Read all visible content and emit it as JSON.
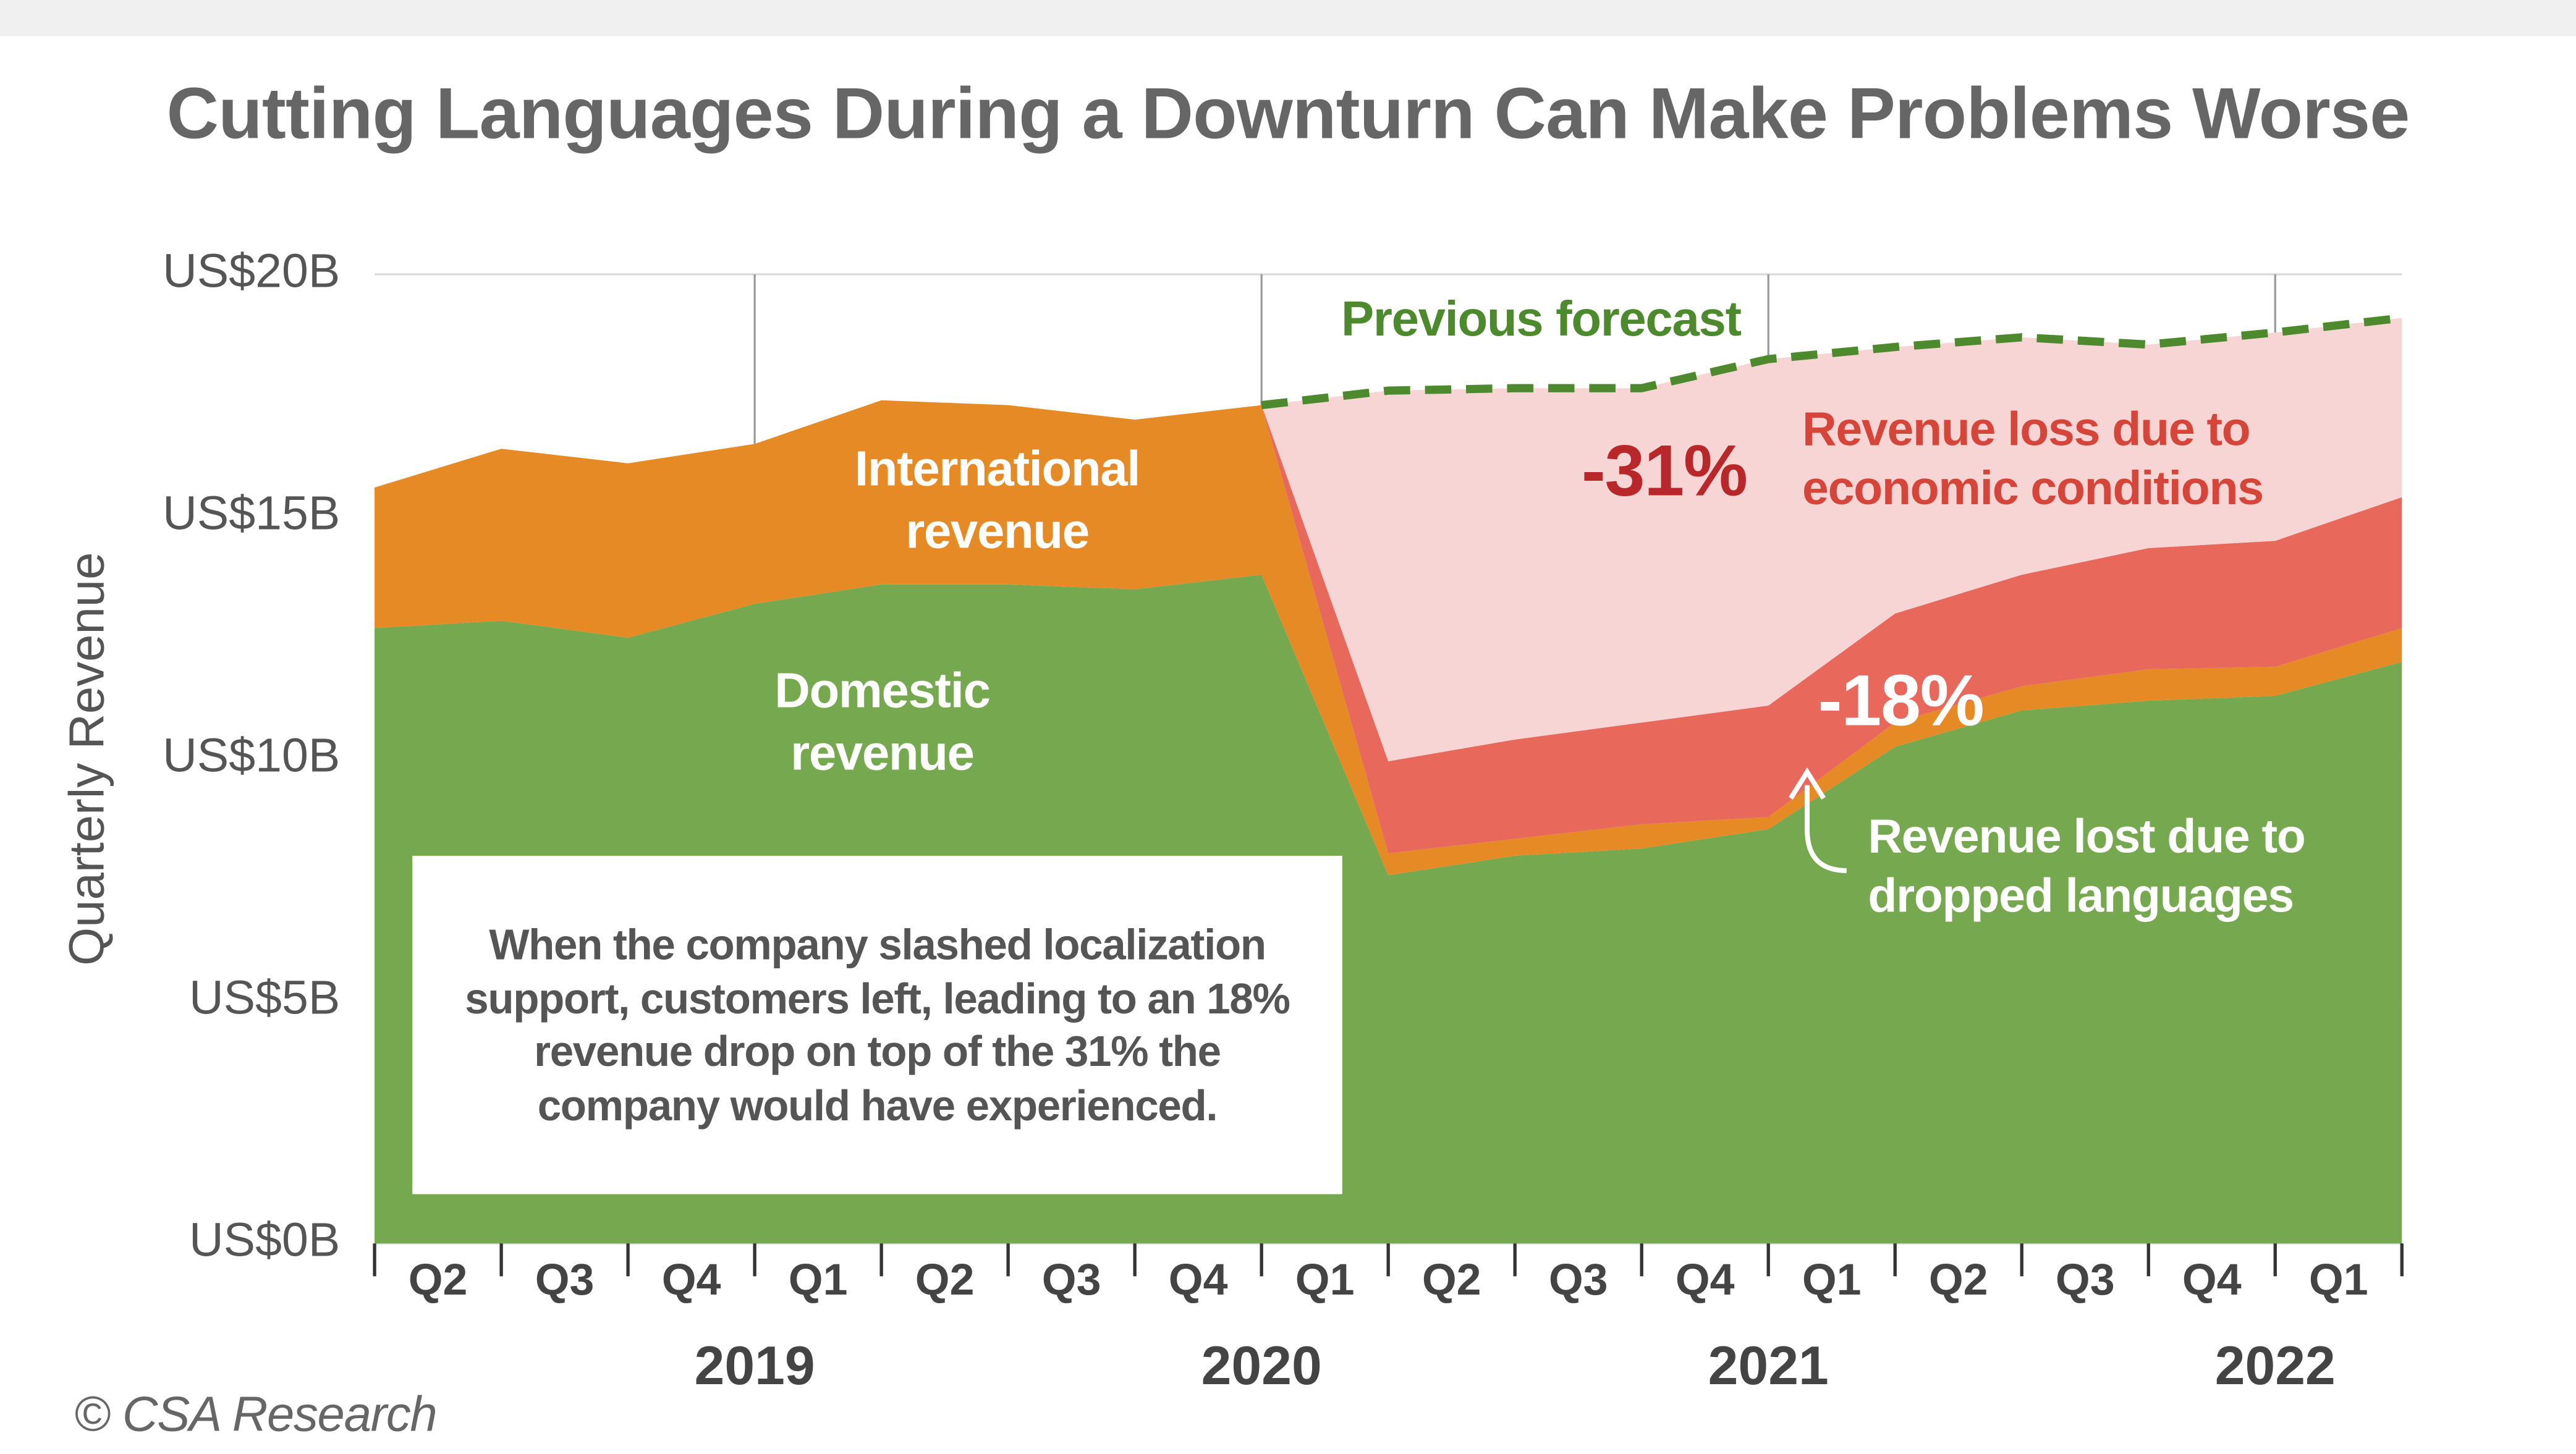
{
  "chart_data": {
    "type": "stacked_area",
    "title": "Cutting Languages During a Downturn Can Make Problems Worse",
    "y_label": "Quarterly Revenue",
    "source": "© CSA Research",
    "x": [
      0,
      1,
      2,
      3,
      4,
      5,
      6,
      7,
      8,
      9,
      10,
      11,
      12,
      13,
      14,
      15,
      16
    ],
    "xlim": [
      0,
      16
    ],
    "xticks": [
      {
        "value": 0.5,
        "label": "Q2"
      },
      {
        "value": 1.5,
        "label": "Q3"
      },
      {
        "value": 2.5,
        "label": "Q4"
      },
      {
        "value": 3.5,
        "label": "Q1"
      },
      {
        "value": 4.5,
        "label": "Q2"
      },
      {
        "value": 5.5,
        "label": "Q3"
      },
      {
        "value": 6.5,
        "label": "Q4"
      },
      {
        "value": 7.5,
        "label": "Q1"
      },
      {
        "value": 8.5,
        "label": "Q2"
      },
      {
        "value": 9.5,
        "label": "Q3"
      },
      {
        "value": 10.5,
        "label": "Q4"
      },
      {
        "value": 11.5,
        "label": "Q1"
      },
      {
        "value": 12.5,
        "label": "Q2"
      },
      {
        "value": 13.5,
        "label": "Q3"
      },
      {
        "value": 14.5,
        "label": "Q4"
      },
      {
        "value": 15.5,
        "label": "Q1"
      }
    ],
    "year_ticks": [
      {
        "value": 3,
        "label": "2019"
      },
      {
        "value": 7,
        "label": "2020"
      },
      {
        "value": 11,
        "label": "2021"
      },
      {
        "value": 15,
        "label": "2022"
      }
    ],
    "ylim": [
      0,
      20
    ],
    "yticks": [
      {
        "value": 0,
        "label": "US$0B"
      },
      {
        "value": 5,
        "label": "US$5B"
      },
      {
        "value": 10,
        "label": "US$10B"
      },
      {
        "value": 15,
        "label": "US$15B"
      },
      {
        "value": 20,
        "label": "US$20B"
      }
    ],
    "grid": true,
    "series": [
      {
        "name": "Domestic revenue",
        "kind": "area",
        "color": "#76a94f",
        "values": [
          12.7,
          12.85,
          12.5,
          13.2,
          13.6,
          13.6,
          13.5,
          13.8,
          7.6,
          8.0,
          8.15,
          8.55,
          10.25,
          11.0,
          11.2,
          11.3,
          12.0
        ]
      },
      {
        "name": "International revenue",
        "kind": "area",
        "color": "#e68a26",
        "values": [
          2.9,
          3.55,
          3.6,
          3.3,
          3.8,
          3.7,
          3.5,
          3.5,
          0.45,
          0.35,
          0.5,
          0.25,
          0.5,
          0.5,
          0.65,
          0.6,
          0.7
        ]
      },
      {
        "name": "Revenue lost due to dropped languages",
        "kind": "area",
        "color": "#e8685c",
        "values": [
          null,
          null,
          null,
          null,
          null,
          null,
          null,
          0,
          1.9,
          2.05,
          2.1,
          2.3,
          2.25,
          2.3,
          2.5,
          2.6,
          2.7
        ]
      },
      {
        "name": "Revenue loss due to economic conditions",
        "kind": "area",
        "color": "#f8d5d5",
        "values": [
          null,
          null,
          null,
          null,
          null,
          null,
          null,
          0,
          7.65,
          7.25,
          6.9,
          7.15,
          5.5,
          4.9,
          4.2,
          4.3,
          3.7
        ]
      },
      {
        "name": "Previous forecast",
        "kind": "line",
        "dashed": true,
        "color": "#4d8a2e",
        "values": [
          null,
          null,
          null,
          null,
          null,
          null,
          null,
          17.3,
          17.6,
          17.65,
          17.65,
          18.25,
          18.5,
          18.7,
          18.55,
          18.8,
          19.1
        ]
      }
    ],
    "annotations": [
      {
        "text": "-31%"
      },
      {
        "text": "-18%"
      },
      {
        "text": "When the company slashed localization support, customers left, leading to an 18% revenue drop on top of the 31% the company would have experienced."
      }
    ]
  }
}
